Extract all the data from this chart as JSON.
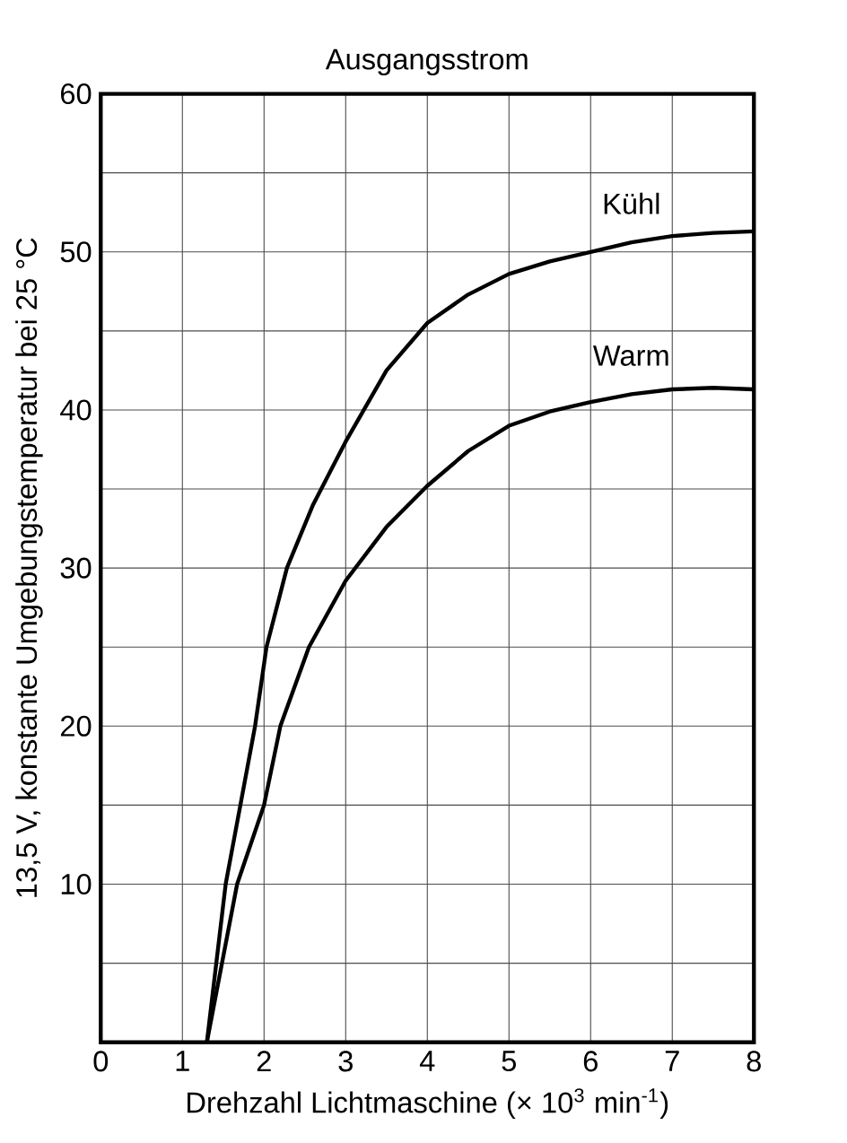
{
  "chart_data": {
    "type": "line",
    "title": "Ausgangsstrom",
    "xlabel": "Drehzahl Lichtmaschine (× 10$^{3}$ min$^{-1}$)",
    "ylabel": "13,5 V, konstante Umgebungstemperatur bei 25 °C",
    "xlim": [
      0,
      8
    ],
    "ylim": [
      0,
      60
    ],
    "xticks": [
      0,
      1,
      2,
      3,
      4,
      5,
      6,
      7,
      8
    ],
    "yticks": [
      {
        "value": 5,
        "label": null
      },
      10,
      {
        "value": 15,
        "label": null
      },
      20,
      {
        "value": 25,
        "label": null
      },
      30,
      {
        "value": 35,
        "label": null
      },
      40,
      {
        "value": 45,
        "label": null
      },
      50,
      {
        "value": 55,
        "label": null
      },
      60
    ],
    "grid": true,
    "legend": false,
    "marker": "none",
    "line_style": "solid",
    "series": [
      {
        "name": "Kühl",
        "color": "#000000",
        "x": [
          1.3,
          1.53,
          1.89,
          2.03,
          2.28,
          2.6,
          3,
          3.5,
          4,
          4.5,
          5,
          5.5,
          6,
          6.5,
          7,
          7.5,
          8
        ],
        "values": [
          0,
          10,
          20,
          25,
          30,
          34,
          38,
          42.5,
          45.5,
          47.3,
          48.6,
          49.4,
          50,
          50.6,
          51,
          51.2,
          51.3
        ]
      },
      {
        "name": "Warm",
        "color": "#000000",
        "x": [
          1.3,
          1.67,
          2,
          2.2,
          2.55,
          3,
          3.5,
          4,
          4.5,
          5,
          5.5,
          6,
          6.5,
          7,
          7.5,
          8
        ],
        "values": [
          0,
          10,
          15,
          20,
          25,
          29.2,
          32.6,
          35.2,
          37.4,
          39,
          39.9,
          40.5,
          41,
          41.3,
          41.4,
          41.3
        ]
      }
    ]
  }
}
